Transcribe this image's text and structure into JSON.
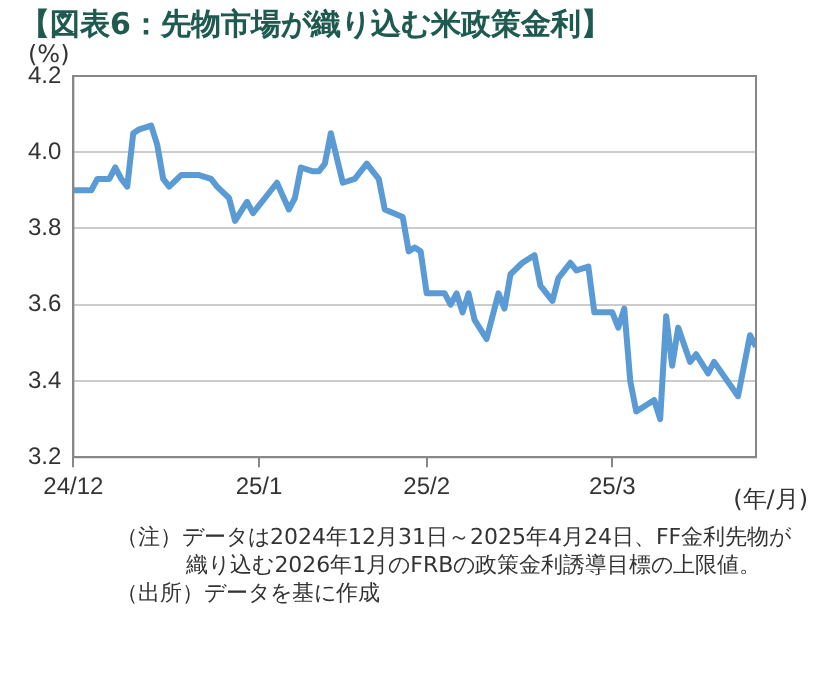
{
  "chart_data": {
    "type": "line",
    "title": "【図表6：先物市場が織り込む米政策金利】",
    "ylabel": "(%)",
    "xlabel": "(年/月)",
    "annotations": [
      "（注）データは2024年12月31日～2025年4月24日、FF金利先物が織り込む2026年1月のFRBの政策金利誘導目標の上限値。",
      "（出所）データを基に作成"
    ],
    "x": [
      "2024-12-31",
      "2025-01-03",
      "2025-01-04",
      "2025-01-06",
      "2025-01-07",
      "2025-01-08",
      "2025-01-09",
      "2025-01-10",
      "2025-01-11",
      "2025-01-13",
      "2025-01-14",
      "2025-01-15",
      "2025-01-16",
      "2025-01-18",
      "2025-01-20",
      "2025-01-21",
      "2025-01-23",
      "2025-01-24",
      "2025-01-26",
      "2025-01-27",
      "2025-01-29",
      "2025-01-30",
      "2025-02-01",
      "2025-02-03",
      "2025-02-05",
      "2025-02-06",
      "2025-02-07",
      "2025-02-09",
      "2025-02-10",
      "2025-02-11",
      "2025-02-12",
      "2025-02-14",
      "2025-02-16",
      "2025-02-18",
      "2025-02-19",
      "2025-02-20",
      "2025-02-21",
      "2025-02-24",
      "2025-02-25",
      "2025-02-26",
      "2025-02-27",
      "2025-02-28",
      "2025-03-03",
      "2025-03-04",
      "2025-03-05",
      "2025-03-06",
      "2025-03-07",
      "2025-03-08",
      "2025-03-10",
      "2025-03-12",
      "2025-03-13",
      "2025-03-14",
      "2025-03-16",
      "2025-03-18",
      "2025-03-19",
      "2025-03-21",
      "2025-03-22",
      "2025-03-24",
      "2025-03-25",
      "2025-03-27",
      "2025-03-28",
      "2025-03-31",
      "2025-04-01",
      "2025-04-02",
      "2025-04-03",
      "2025-04-04",
      "2025-04-07",
      "2025-04-08",
      "2025-04-09",
      "2025-04-10",
      "2025-04-11",
      "2025-04-13",
      "2025-04-14",
      "2025-04-16",
      "2025-04-17",
      "2025-04-21",
      "2025-04-23",
      "2025-04-24"
    ],
    "values": [
      3.9,
      3.9,
      3.93,
      3.93,
      3.96,
      3.93,
      3.91,
      4.05,
      4.06,
      4.07,
      4.02,
      3.93,
      3.91,
      3.94,
      3.94,
      3.94,
      3.93,
      3.91,
      3.88,
      3.82,
      3.87,
      3.84,
      3.88,
      3.92,
      3.85,
      3.88,
      3.96,
      3.95,
      3.95,
      3.97,
      4.05,
      3.92,
      3.93,
      3.97,
      3.95,
      3.93,
      3.85,
      3.83,
      3.74,
      3.75,
      3.74,
      3.63,
      3.63,
      3.6,
      3.63,
      3.58,
      3.63,
      3.56,
      3.51,
      3.63,
      3.59,
      3.68,
      3.71,
      3.73,
      3.65,
      3.61,
      3.67,
      3.71,
      3.69,
      3.7,
      3.58,
      3.58,
      3.54,
      3.59,
      3.4,
      3.32,
      3.35,
      3.3,
      3.57,
      3.44,
      3.54,
      3.45,
      3.47,
      3.42,
      3.45,
      3.36,
      3.52,
      3.49
    ],
    "color": "#5b9bd5",
    "xlim": [
      "2024-12-31",
      "2025-04-24"
    ],
    "xticks": [
      {
        "value": "2024-12-31",
        "label": "24/12"
      },
      {
        "value": "2025-01-31",
        "label": "25/1"
      },
      {
        "value": "2025-02-28",
        "label": "25/2"
      },
      {
        "value": "2025-03-31",
        "label": "25/3"
      }
    ],
    "ylim": [
      3.2,
      4.2
    ],
    "yticks": [
      3.2,
      3.4,
      3.6,
      3.8,
      {
        "value": 4,
        "label": "4.0"
      },
      4.2
    ],
    "grid": "y",
    "legend": false
  }
}
